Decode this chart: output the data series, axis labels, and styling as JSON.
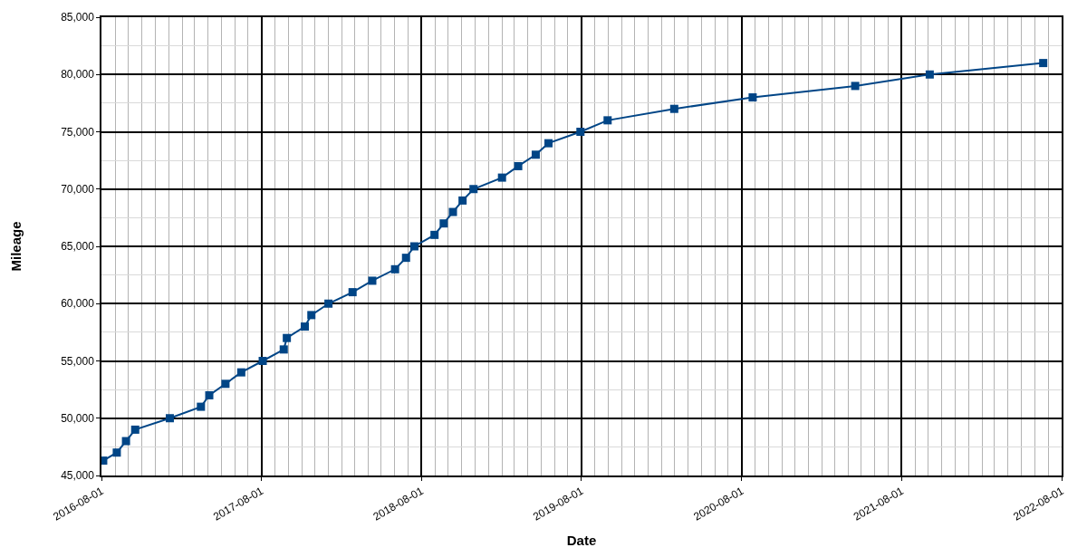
{
  "chart_data": {
    "type": "line",
    "xlabel": "Date",
    "ylabel": "Mileage",
    "marker": "square",
    "line_style": "solid",
    "grid": true,
    "x": [
      "2016-08-05",
      "2016-09-05",
      "2016-09-26",
      "2016-10-17",
      "2017-01-04",
      "2017-03-16",
      "2017-04-04",
      "2017-05-11",
      "2017-06-16",
      "2017-08-04",
      "2017-09-21",
      "2017-09-28",
      "2017-11-08",
      "2017-11-23",
      "2018-01-01",
      "2018-02-25",
      "2018-04-11",
      "2018-06-02",
      "2018-06-27",
      "2018-07-16",
      "2018-08-31",
      "2018-09-21",
      "2018-10-12",
      "2018-11-03",
      "2018-11-28",
      "2019-02-01",
      "2019-03-10",
      "2019-04-19",
      "2019-05-18",
      "2019-07-30",
      "2019-09-30",
      "2020-02-29",
      "2020-08-26",
      "2021-04-17",
      "2021-10-04",
      "2022-06-20"
    ],
    "series": [
      {
        "color": "#004586",
        "values": [
          46300,
          47000,
          48000,
          49000,
          50000,
          51000,
          52000,
          53000,
          54000,
          55000,
          56000,
          57000,
          58000,
          59000,
          60000,
          61000,
          62000,
          63000,
          64000,
          65000,
          66000,
          67000,
          68000,
          69000,
          70000,
          71000,
          72000,
          73000,
          74000,
          75000,
          76000,
          77000,
          78000,
          79000,
          80000,
          81000
        ]
      }
    ],
    "xlim": [
      "2016-08-01",
      "2022-08-01"
    ],
    "xticks": [
      "2016-08-01",
      "2017-08-01",
      "2018-08-01",
      "2019-08-01",
      "2020-08-01",
      "2021-08-01",
      "2022-08-01"
    ],
    "ylim": [
      45000,
      85000
    ],
    "yticks": [
      {
        "value": 45000,
        "label": "45,000"
      },
      {
        "value": 50000,
        "label": "50,000"
      },
      {
        "value": 55000,
        "label": "55,000"
      },
      {
        "value": 60000,
        "label": "60,000"
      },
      {
        "value": 65000,
        "label": "65,000"
      },
      {
        "value": 70000,
        "label": "70,000"
      },
      {
        "value": 75000,
        "label": "75,000"
      },
      {
        "value": 80000,
        "label": "80,000"
      },
      {
        "value": 85000,
        "label": "85,000"
      }
    ]
  }
}
